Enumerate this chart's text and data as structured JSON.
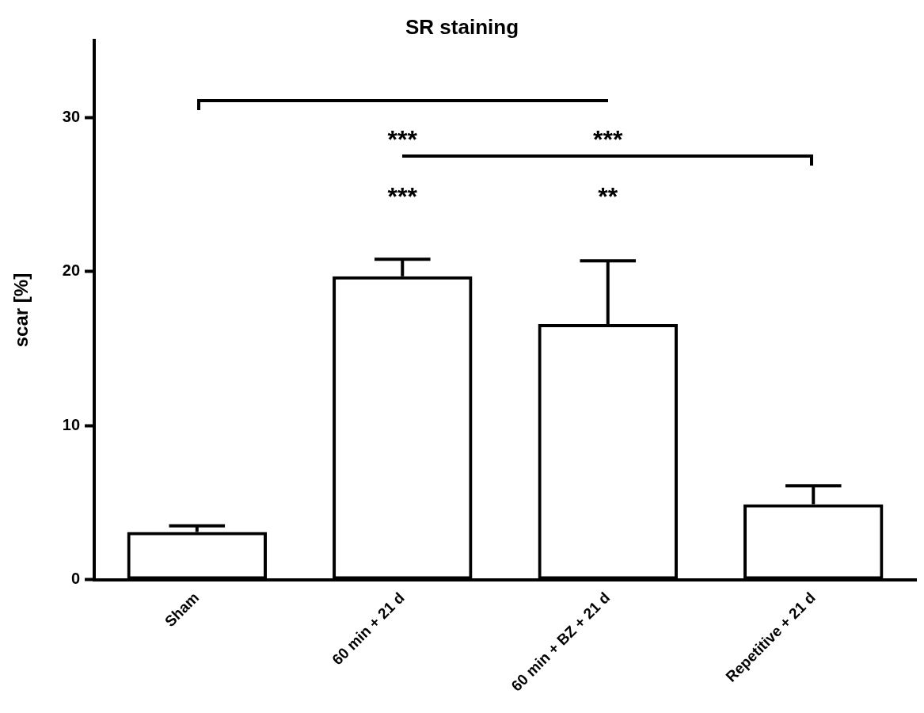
{
  "chart_data": {
    "type": "bar",
    "title": "SR staining",
    "ylabel": "scar [%]",
    "categories": [
      "Sham",
      "60 min + 21 d",
      "60 min + BZ + 21 d",
      "Repetitive + 21 d"
    ],
    "values": [
      3.1,
      19.7,
      16.6,
      4.9
    ],
    "errors": [
      [
        3.1,
        3.5
      ],
      [
        19.7,
        20.8
      ],
      [
        16.6,
        20.7
      ],
      [
        4.9,
        6.1
      ]
    ],
    "colors": [
      "#000000",
      "#000000",
      "#000000",
      "#000000"
    ],
    "ylim": [
      0,
      35
    ],
    "yticks": [
      0,
      10,
      20,
      30
    ],
    "grid": false,
    "legend": false,
    "annotations": [
      "***",
      "***",
      "***",
      "**"
    ]
  }
}
